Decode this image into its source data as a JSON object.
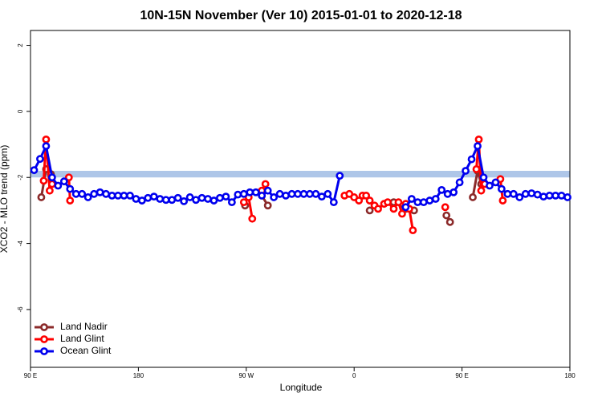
{
  "chart_data": {
    "type": "line",
    "title": "10N-15N November (Ver 10)   2015-01-01 to 2020-12-18",
    "x_label": "Longitude",
    "y_label": "XCO2 - MLO trend (ppm)",
    "xlim": [
      90,
      540
    ],
    "ylim": [
      -7.75,
      2.45
    ],
    "xticks": [
      {
        "value": 90,
        "label": "90 E"
      },
      {
        "value": 180,
        "label": "180"
      },
      {
        "value": 270,
        "label": "90 W"
      },
      {
        "value": 360,
        "label": "0"
      },
      {
        "value": 450,
        "label": "90 E"
      },
      {
        "value": 540,
        "label": "180"
      }
    ],
    "yticks": [
      -6,
      -4,
      -2,
      0,
      2
    ],
    "band": [
      -2.0,
      -1.8
    ],
    "band_color": "#aec6e8",
    "legend": "bottom-left",
    "series": [
      {
        "name": "Land Nadir",
        "color": "#8b2a2a",
        "x": [
          99,
          103,
          107,
          110,
          269,
          275,
          283,
          288,
          300,
          373,
          380,
          393,
          403,
          410,
          420,
          437,
          440,
          450,
          459,
          463,
          466
        ],
        "values": [
          -2.6,
          -1.75,
          -1.9,
          null,
          -2.85,
          null,
          -2.55,
          -2.85,
          null,
          -3.0,
          null,
          -2.75,
          -2.95,
          -3.0,
          null,
          -3.15,
          -3.35,
          null,
          -2.6,
          -1.8,
          -2.2
        ]
      },
      {
        "name": "Land Glint",
        "color": "#ff0000",
        "x": [
          101,
          103,
          106,
          108,
          115,
          122,
          123,
          200,
          268,
          272,
          275,
          279,
          283,
          286,
          300,
          352,
          356,
          360,
          364,
          367,
          370,
          373,
          377,
          380,
          385,
          388,
          393,
          397,
          400,
          403,
          406,
          409,
          420,
          436,
          450,
          462,
          464,
          466,
          469,
          475,
          482,
          484
        ],
        "values": [
          -2.1,
          -0.85,
          -2.4,
          -2.2,
          null,
          -2.0,
          -2.7,
          null,
          -2.75,
          -2.6,
          -3.25,
          null,
          -2.4,
          -2.2,
          null,
          -2.55,
          -2.5,
          -2.6,
          -2.7,
          -2.55,
          -2.55,
          -2.7,
          -2.85,
          -2.95,
          -2.8,
          -2.75,
          -2.95,
          -2.75,
          -3.1,
          -2.8,
          -2.95,
          -3.6,
          null,
          -2.9,
          null,
          -1.75,
          -0.85,
          -2.4,
          -2.2,
          null,
          -2.05,
          -2.7
        ]
      },
      {
        "name": "Ocean Glint",
        "color": "#0000ee",
        "x": [
          93,
          98,
          103,
          108,
          113,
          118,
          123,
          128,
          133,
          138,
          143,
          148,
          153,
          158,
          163,
          168,
          173,
          178,
          183,
          188,
          193,
          198,
          203,
          208,
          213,
          218,
          223,
          228,
          233,
          238,
          243,
          248,
          253,
          258,
          263,
          268,
          273,
          278,
          283,
          288,
          293,
          298,
          303,
          308,
          313,
          318,
          323,
          328,
          333,
          338,
          343,
          348,
          375,
          403,
          408,
          413,
          418,
          423,
          428,
          433,
          438,
          443,
          448,
          453,
          458,
          463,
          468,
          473,
          478,
          483,
          488,
          493,
          498,
          503,
          508,
          513,
          518,
          523,
          528,
          533,
          538
        ],
        "values": [
          -1.78,
          -1.44,
          -1.05,
          -2.0,
          -2.25,
          -2.12,
          -2.35,
          -2.5,
          -2.5,
          -2.6,
          -2.5,
          -2.45,
          -2.5,
          -2.55,
          -2.55,
          -2.55,
          -2.55,
          -2.65,
          -2.7,
          -2.62,
          -2.58,
          -2.65,
          -2.68,
          -2.68,
          -2.62,
          -2.72,
          -2.6,
          -2.68,
          -2.62,
          -2.65,
          -2.7,
          -2.62,
          -2.58,
          -2.75,
          -2.52,
          -2.5,
          -2.45,
          -2.45,
          -2.55,
          -2.4,
          -2.6,
          -2.5,
          -2.55,
          -2.5,
          -2.5,
          -2.5,
          -2.5,
          -2.5,
          -2.58,
          -2.5,
          -2.75,
          -1.95,
          null,
          -2.9,
          -2.65,
          -2.75,
          -2.75,
          -2.7,
          -2.65,
          -2.38,
          -2.5,
          -2.45,
          -2.15,
          -1.8,
          -1.45,
          -1.05,
          -2.0,
          -2.25,
          -2.15,
          -2.35,
          -2.5,
          -2.5,
          -2.6,
          -2.5,
          -2.48,
          -2.52,
          -2.58,
          -2.55,
          -2.55,
          -2.55,
          -2.6
        ]
      }
    ]
  }
}
